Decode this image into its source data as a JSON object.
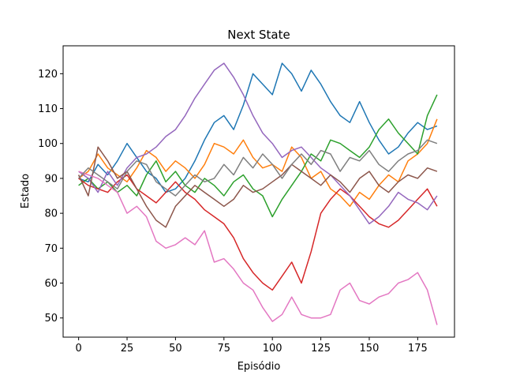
{
  "chart_data": {
    "type": "line",
    "title": "Next State",
    "xlabel": "Episódio",
    "ylabel": "Estado",
    "xlim": [
      -8,
      194
    ],
    "ylim": [
      44.5,
      128
    ],
    "xticks": [
      0,
      25,
      50,
      75,
      100,
      125,
      150,
      175
    ],
    "yticks": [
      50,
      60,
      70,
      80,
      90,
      100,
      110,
      120
    ],
    "grid": false,
    "legend": "none",
    "series": [
      {
        "color": "#1f77b4",
        "x": [
          0,
          5,
          10,
          15,
          20,
          25,
          30,
          35,
          40,
          45,
          50,
          55,
          60,
          65,
          70,
          75,
          80,
          85,
          90,
          95,
          100,
          105,
          110,
          115,
          120,
          125,
          130,
          135,
          140,
          145,
          150,
          155,
          160,
          165,
          170,
          175,
          180,
          185
        ],
        "y": [
          90,
          89,
          94,
          91,
          95,
          100,
          96,
          92,
          90,
          86,
          87,
          90,
          95,
          101,
          106,
          108,
          104,
          111,
          120,
          117,
          114,
          123,
          120,
          115,
          121,
          117,
          112,
          108,
          106,
          112,
          106,
          101,
          97,
          99,
          103,
          106,
          104,
          105
        ]
      },
      {
        "color": "#ff7f0e",
        "x": [
          0,
          5,
          10,
          15,
          20,
          25,
          30,
          35,
          40,
          45,
          50,
          55,
          60,
          65,
          70,
          75,
          80,
          85,
          90,
          95,
          100,
          105,
          110,
          115,
          120,
          125,
          130,
          135,
          140,
          145,
          150,
          155,
          160,
          165,
          170,
          175,
          180,
          185
        ],
        "y": [
          90,
          92,
          97,
          93,
          91,
          89,
          93,
          98,
          96,
          92,
          95,
          93,
          90,
          94,
          100,
          99,
          97,
          101,
          96,
          93,
          94,
          92,
          99,
          96,
          90,
          92,
          87,
          85,
          82,
          86,
          84,
          88,
          91,
          89,
          95,
          97,
          100,
          107
        ]
      },
      {
        "color": "#2ca02c",
        "x": [
          0,
          5,
          10,
          15,
          20,
          25,
          30,
          35,
          40,
          45,
          50,
          55,
          60,
          65,
          70,
          75,
          80,
          85,
          90,
          95,
          100,
          105,
          110,
          115,
          120,
          125,
          130,
          135,
          140,
          145,
          150,
          155,
          160,
          165,
          170,
          175,
          180,
          185
        ],
        "y": [
          88,
          90,
          87,
          89,
          86,
          88,
          85,
          91,
          95,
          89,
          92,
          88,
          86,
          90,
          88,
          85,
          89,
          91,
          87,
          85,
          79,
          84,
          88,
          92,
          97,
          95,
          101,
          100,
          98,
          96,
          99,
          104,
          107,
          103,
          100,
          97,
          108,
          114
        ]
      },
      {
        "color": "#d62728",
        "x": [
          0,
          5,
          10,
          15,
          20,
          25,
          30,
          35,
          40,
          45,
          50,
          55,
          60,
          65,
          70,
          75,
          80,
          85,
          90,
          95,
          100,
          105,
          110,
          115,
          120,
          125,
          130,
          135,
          140,
          145,
          150,
          155,
          160,
          165,
          170,
          175,
          180,
          185
        ],
        "y": [
          90,
          88,
          87,
          86,
          89,
          91,
          87,
          85,
          83,
          86,
          89,
          86,
          84,
          81,
          79,
          77,
          73,
          67,
          63,
          60,
          58,
          62,
          66,
          60,
          69,
          80,
          84,
          87,
          85,
          82,
          79,
          77,
          76,
          78,
          81,
          84,
          87,
          82
        ]
      },
      {
        "color": "#9467bd",
        "x": [
          0,
          5,
          10,
          15,
          20,
          25,
          30,
          35,
          40,
          45,
          50,
          55,
          60,
          65,
          70,
          75,
          80,
          85,
          90,
          95,
          100,
          105,
          110,
          115,
          120,
          125,
          130,
          135,
          140,
          145,
          150,
          155,
          160,
          165,
          170,
          175,
          180,
          185
        ],
        "y": [
          92,
          90,
          86,
          92,
          88,
          93,
          96,
          97,
          99,
          102,
          104,
          108,
          113,
          117,
          121,
          123,
          119,
          114,
          108,
          103,
          100,
          96,
          98,
          99,
          96,
          93,
          91,
          88,
          85,
          81,
          77,
          79,
          82,
          86,
          84,
          83,
          81,
          85
        ]
      },
      {
        "color": "#8c564b",
        "x": [
          0,
          5,
          10,
          15,
          20,
          25,
          30,
          35,
          40,
          45,
          50,
          55,
          60,
          65,
          70,
          75,
          80,
          85,
          90,
          95,
          100,
          105,
          110,
          115,
          120,
          125,
          130,
          135,
          140,
          145,
          150,
          155,
          160,
          165,
          170,
          175,
          180,
          185
        ],
        "y": [
          91,
          85,
          99,
          95,
          90,
          92,
          87,
          82,
          78,
          76,
          82,
          85,
          88,
          86,
          84,
          82,
          84,
          88,
          86,
          87,
          89,
          91,
          94,
          92,
          90,
          88,
          91,
          89,
          86,
          90,
          92,
          88,
          86,
          89,
          91,
          90,
          93,
          92
        ]
      },
      {
        "color": "#e377c2",
        "x": [
          0,
          5,
          10,
          15,
          20,
          25,
          30,
          35,
          40,
          45,
          50,
          55,
          60,
          65,
          70,
          75,
          80,
          85,
          90,
          95,
          100,
          105,
          110,
          115,
          120,
          125,
          130,
          135,
          140,
          145,
          150,
          155,
          160,
          165,
          170,
          175,
          180,
          185
        ],
        "y": [
          92,
          91,
          90,
          88,
          86,
          80,
          82,
          79,
          72,
          70,
          71,
          73,
          71,
          75,
          66,
          67,
          64,
          60,
          58,
          53,
          49,
          51,
          56,
          51,
          50,
          50,
          51,
          58,
          60,
          55,
          54,
          56,
          57,
          60,
          61,
          63,
          58,
          48
        ]
      },
      {
        "color": "#7f7f7f",
        "x": [
          0,
          5,
          10,
          15,
          20,
          25,
          30,
          35,
          40,
          45,
          50,
          55,
          60,
          65,
          70,
          75,
          80,
          85,
          90,
          95,
          100,
          105,
          110,
          115,
          120,
          125,
          130,
          135,
          140,
          145,
          150,
          155,
          160,
          165,
          170,
          175,
          180,
          185
        ],
        "y": [
          90,
          93,
          91,
          89,
          87,
          92,
          95,
          94,
          89,
          87,
          85,
          88,
          91,
          89,
          90,
          94,
          91,
          96,
          93,
          97,
          94,
          90,
          94,
          97,
          94,
          98,
          97,
          92,
          96,
          95,
          98,
          94,
          92,
          95,
          97,
          98,
          101,
          100
        ]
      }
    ]
  }
}
